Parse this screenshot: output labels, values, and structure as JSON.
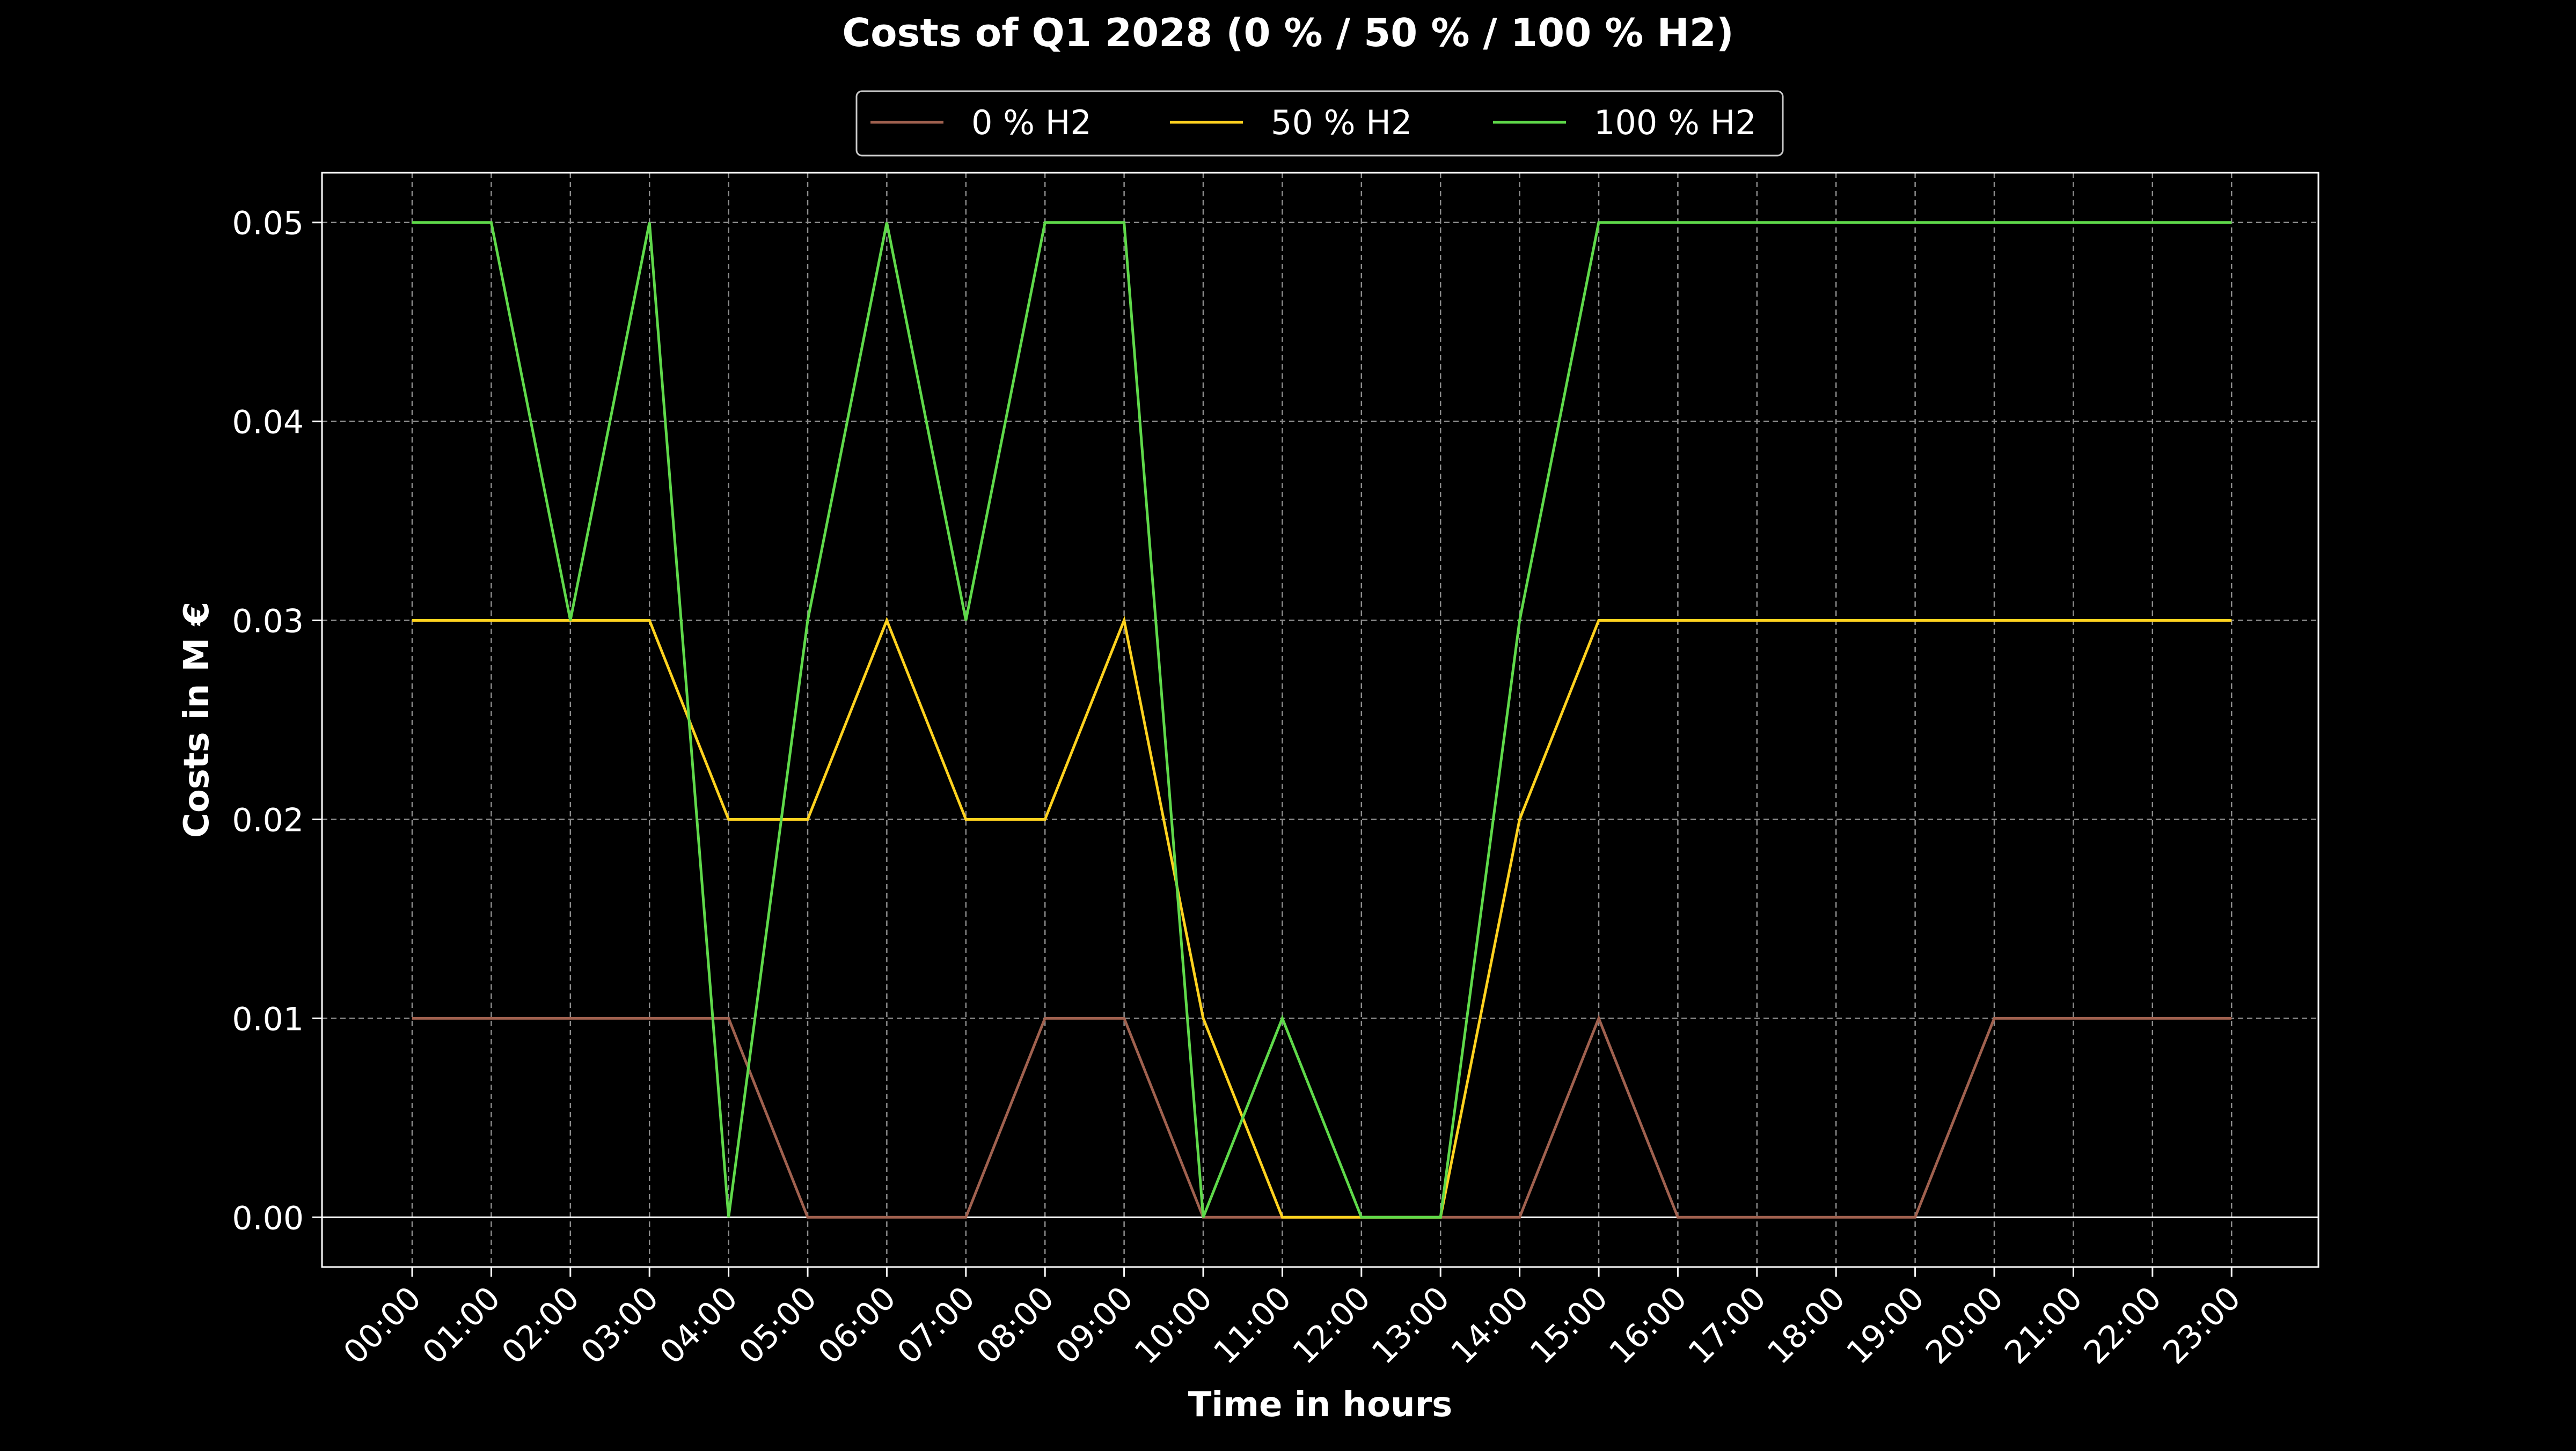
{
  "chart_data": {
    "type": "line",
    "title": "Costs of Q1 2028 (0 % / 50 % / 100 % H2)",
    "xlabel": "Time in hours",
    "ylabel": "Costs in M €",
    "x": [
      "00:00",
      "01:00",
      "02:00",
      "03:00",
      "04:00",
      "05:00",
      "06:00",
      "07:00",
      "08:00",
      "09:00",
      "10:00",
      "11:00",
      "12:00",
      "13:00",
      "14:00",
      "15:00",
      "16:00",
      "17:00",
      "18:00",
      "19:00",
      "20:00",
      "21:00",
      "22:00",
      "23:00"
    ],
    "ylim": [
      -0.0025,
      0.0525
    ],
    "yticks": [
      0.0,
      0.01,
      0.02,
      0.03,
      0.04,
      0.05
    ],
    "ytick_labels": [
      "0.00",
      "0.01",
      "0.02",
      "0.03",
      "0.04",
      "0.05"
    ],
    "grid": true,
    "legend_position": "top-center",
    "zero_line": true,
    "background": "#000000",
    "series": [
      {
        "name": "0 % H2",
        "color": "#a0614f",
        "values": [
          0.01,
          0.01,
          0.01,
          0.01,
          0.01,
          0.0,
          0.0,
          0.0,
          0.01,
          0.01,
          0.0,
          0.0,
          0.0,
          0.0,
          0.0,
          0.01,
          0.0,
          0.0,
          0.0,
          0.0,
          0.01,
          0.01,
          0.01,
          0.01
        ]
      },
      {
        "name": "50 % H2",
        "color": "#ffd21f",
        "values": [
          0.03,
          0.03,
          0.03,
          0.03,
          0.02,
          0.02,
          0.03,
          0.02,
          0.02,
          0.03,
          0.01,
          0.0,
          0.0,
          0.0,
          0.02,
          0.03,
          0.03,
          0.03,
          0.03,
          0.03,
          0.03,
          0.03,
          0.03,
          0.03
        ]
      },
      {
        "name": "100 % H2",
        "color": "#5fd94a",
        "values": [
          0.05,
          0.05,
          0.03,
          0.05,
          0.0,
          0.03,
          0.05,
          0.03,
          0.05,
          0.05,
          0.0,
          0.01,
          0.0,
          0.0,
          0.03,
          0.05,
          0.05,
          0.05,
          0.05,
          0.05,
          0.05,
          0.05,
          0.05,
          0.05
        ]
      }
    ]
  }
}
